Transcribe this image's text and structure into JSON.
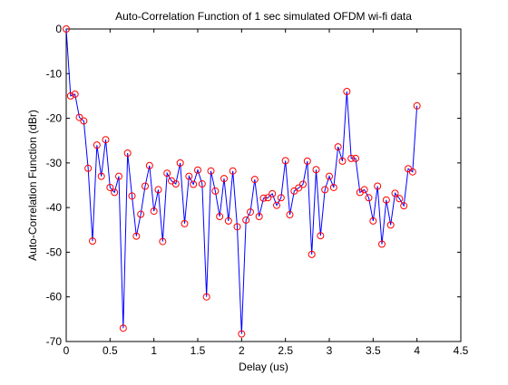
{
  "chart_data": {
    "type": "line",
    "title": "Auto-Correlation Function of 1 sec simulated OFDM wi-fi data",
    "xlabel": "Delay (us)",
    "ylabel": "Auto-Correlation Function (dBr)",
    "xlim": [
      0,
      4.5
    ],
    "ylim": [
      -70,
      0
    ],
    "xticks": [
      0,
      0.5,
      1,
      1.5,
      2,
      2.5,
      3,
      3.5,
      4,
      4.5
    ],
    "xtick_labels": [
      "0",
      "0.5",
      "1",
      "1.5",
      "2",
      "2.5",
      "3",
      "3.5",
      "4",
      "4.5"
    ],
    "yticks": [
      0,
      -10,
      -20,
      -30,
      -40,
      -50,
      -60,
      -70
    ],
    "ytick_labels": [
      "0",
      "-10",
      "-20",
      "-30",
      "-40",
      "-50",
      "-60",
      "-70"
    ],
    "grid": false,
    "line_color": "#0000ff",
    "marker_color": "#ff0000",
    "marker": "circle",
    "series": [
      {
        "x": [
          0,
          0.05,
          0.1,
          0.15,
          0.2,
          0.25,
          0.3,
          0.35,
          0.4,
          0.45,
          0.5,
          0.55,
          0.6,
          0.65,
          0.7,
          0.75,
          0.8,
          0.85,
          0.9,
          0.95,
          1.0,
          1.05,
          1.1,
          1.15,
          1.2,
          1.25,
          1.3,
          1.35,
          1.4,
          1.45,
          1.5,
          1.55,
          1.6,
          1.65,
          1.7,
          1.75,
          1.8,
          1.85,
          1.9,
          1.95,
          2.0,
          2.05,
          2.1,
          2.15,
          2.2,
          2.25,
          2.3,
          2.35,
          2.4,
          2.45,
          2.5,
          2.55,
          2.6,
          2.65,
          2.7,
          2.75,
          2.8,
          2.85,
          2.9,
          2.95,
          3.0,
          3.05,
          3.1,
          3.15,
          3.2,
          3.25,
          3.3,
          3.35,
          3.4,
          3.45,
          3.5,
          3.55,
          3.6,
          3.65,
          3.7,
          3.75,
          3.8,
          3.85,
          3.9,
          3.95,
          4.0
        ],
        "y": [
          0,
          -15.0,
          -14.6,
          -19.8,
          -20.6,
          -31.2,
          -47.5,
          -26.0,
          -33.0,
          -24.8,
          -35.5,
          -36.6,
          -33.0,
          -67.0,
          -27.8,
          -37.4,
          -46.4,
          -41.5,
          -35.2,
          -30.6,
          -40.8,
          -36.0,
          -47.6,
          -32.3,
          -34.0,
          -34.7,
          -30.0,
          -43.6,
          -33.0,
          -34.8,
          -31.6,
          -34.7,
          -60.0,
          -31.8,
          -36.3,
          -42.0,
          -33.5,
          -43.0,
          -31.8,
          -44.3,
          -68.3,
          -42.8,
          -41.0,
          -33.7,
          -42.0,
          -37.9,
          -37.8,
          -36.9,
          -39.5,
          -37.8,
          -29.5,
          -41.6,
          -36.3,
          -35.6,
          -34.8,
          -29.6,
          -50.5,
          -31.5,
          -46.3,
          -36.0,
          -33.0,
          -35.5,
          -26.4,
          -29.6,
          -14.0,
          -29.0,
          -29.0,
          -36.6,
          -36.0,
          -37.8,
          -43.0,
          -35.2,
          -48.2,
          -38.3,
          -43.9,
          -36.8,
          -38.0,
          -39.6,
          -31.3,
          -32.0,
          -17.2
        ]
      }
    ]
  }
}
